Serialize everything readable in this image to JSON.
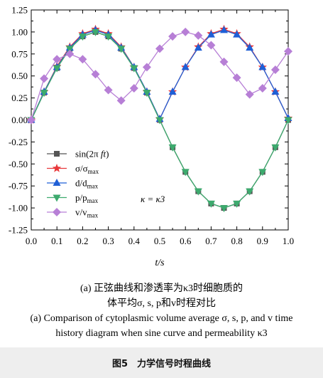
{
  "chart_data": {
    "type": "line",
    "xlabel": "t/s",
    "ylabel": "",
    "xlim": [
      0.0,
      1.0
    ],
    "ylim": [
      -1.25,
      1.25
    ],
    "x_ticks": [
      "0.0",
      "0.1",
      "0.2",
      "0.3",
      "0.4",
      "0.5",
      "0.6",
      "0.7",
      "0.8",
      "0.9",
      "1.0"
    ],
    "y_ticks": [
      "1.25",
      "1.00",
      "0.75",
      "0.50",
      "0.25",
      "0.00",
      "-0.25",
      "-0.50",
      "-0.75",
      "-1.00",
      "-1.25"
    ],
    "grid": false,
    "legend_position": "lower-left",
    "annotation": "κ = κ3",
    "x": [
      0.0,
      0.05,
      0.1,
      0.15,
      0.2,
      0.25,
      0.3,
      0.35,
      0.4,
      0.45,
      0.5,
      0.55,
      0.6,
      0.65,
      0.7,
      0.75,
      0.8,
      0.85,
      0.9,
      0.95,
      1.0
    ],
    "series": [
      {
        "name": "sin(2π ft)",
        "color": "#555555",
        "marker": "square",
        "values": [
          0.0,
          0.31,
          0.59,
          0.81,
          0.95,
          1.0,
          0.95,
          0.81,
          0.59,
          0.31,
          0.0,
          -0.31,
          -0.59,
          -0.81,
          -0.95,
          -1.0,
          -0.95,
          -0.81,
          -0.59,
          -0.31,
          0.0
        ]
      },
      {
        "name": "σ/σmax",
        "color": "#e8373a",
        "marker": "star",
        "values": [
          0.0,
          0.32,
          0.61,
          0.83,
          0.98,
          1.03,
          0.98,
          0.83,
          0.6,
          0.32,
          0.01,
          0.32,
          0.6,
          0.83,
          0.98,
          1.03,
          0.98,
          0.83,
          0.6,
          0.32,
          0.02
        ]
      },
      {
        "name": "d/dmax",
        "color": "#1f5fd6",
        "marker": "triangle-up",
        "values": [
          0.0,
          0.32,
          0.6,
          0.82,
          0.97,
          1.02,
          0.97,
          0.82,
          0.6,
          0.32,
          0.01,
          0.32,
          0.6,
          0.82,
          0.97,
          1.02,
          0.97,
          0.82,
          0.6,
          0.32,
          0.02
        ]
      },
      {
        "name": "p/pmax",
        "color": "#3daa6e",
        "marker": "triangle-down",
        "values": [
          0.0,
          0.31,
          0.59,
          0.81,
          0.95,
          1.0,
          0.95,
          0.81,
          0.59,
          0.31,
          0.0,
          -0.31,
          -0.59,
          -0.81,
          -0.95,
          -1.0,
          -0.95,
          -0.81,
          -0.59,
          -0.31,
          0.0
        ]
      },
      {
        "name": "v/vmax",
        "color": "#b77fd6",
        "marker": "diamond",
        "values": [
          0.0,
          0.47,
          0.69,
          0.75,
          0.69,
          0.52,
          0.34,
          0.22,
          0.36,
          0.6,
          0.81,
          0.95,
          1.0,
          0.96,
          0.85,
          0.66,
          0.48,
          0.29,
          0.36,
          0.57,
          0.78
        ]
      }
    ]
  },
  "legend": [
    {
      "main": "sin(2π",
      "it": "ft",
      "tail": ")",
      "sub": ""
    },
    {
      "main": "σ/σ",
      "it": "",
      "tail": "",
      "sub": "max"
    },
    {
      "main": "d/d",
      "it": "",
      "tail": "",
      "sub": "max"
    },
    {
      "main": "p/p",
      "it": "",
      "tail": "",
      "sub": "max"
    },
    {
      "main": "v/v",
      "it": "",
      "tail": "",
      "sub": "max"
    }
  ],
  "caption": {
    "zh_line1": "(a) 正弦曲线和渗透率为κ3时细胞质的",
    "zh_line2": "体平均σ, s, p和v时程对比",
    "en_line1": "(a) Comparison of cytoplasmic volume average σ, s, p, and v time",
    "en_line2": "history diagram when sine curve and permeability κ3"
  },
  "figure_title": "图5　力学信号时程曲线"
}
